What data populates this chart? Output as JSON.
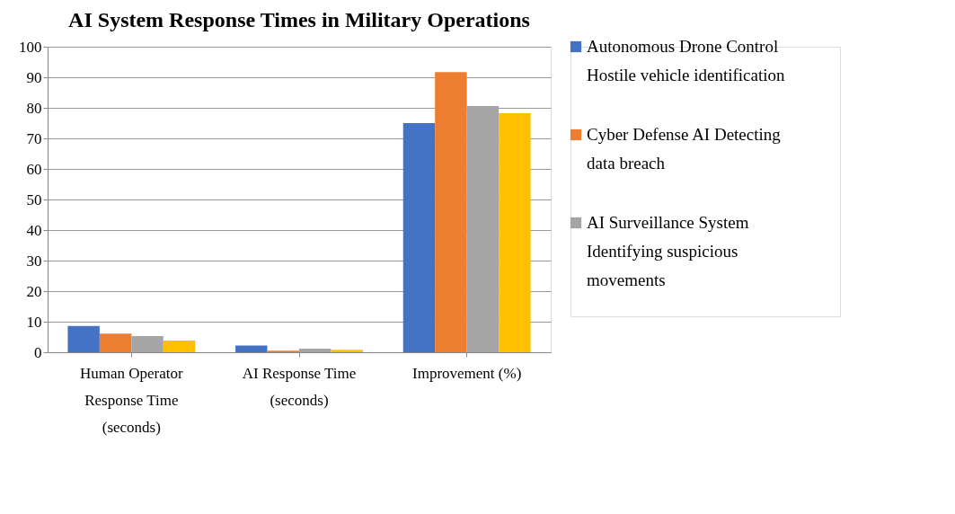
{
  "chart_data": {
    "type": "bar",
    "title": "AI System Response Times in Military Operations",
    "categories": [
      "Human Operator Response Time (seconds)",
      "AI Response Time (seconds)",
      "Improvement (%)"
    ],
    "series": [
      {
        "name": "Autonomous Drone Control Hostile vehicle identification",
        "color": "#4472c4",
        "values": [
          8.6,
          2.2,
          75
        ]
      },
      {
        "name": "Cyber Defense AI Detecting data breach",
        "color": "#ed7d31",
        "values": [
          6.1,
          0.5,
          91.7
        ]
      },
      {
        "name": "AI Surveillance System Identifying suspicious movements",
        "color": "#a5a5a5",
        "values": [
          5.3,
          1.2,
          80.6
        ]
      },
      {
        "color": "#ffc000",
        "values": [
          3.8,
          0.8,
          78.2
        ]
      }
    ],
    "ylim": [
      0,
      100
    ],
    "yticks": [
      0,
      10,
      20,
      30,
      40,
      50,
      60,
      70,
      80,
      90,
      100
    ],
    "grid": "y",
    "legend": "right"
  }
}
